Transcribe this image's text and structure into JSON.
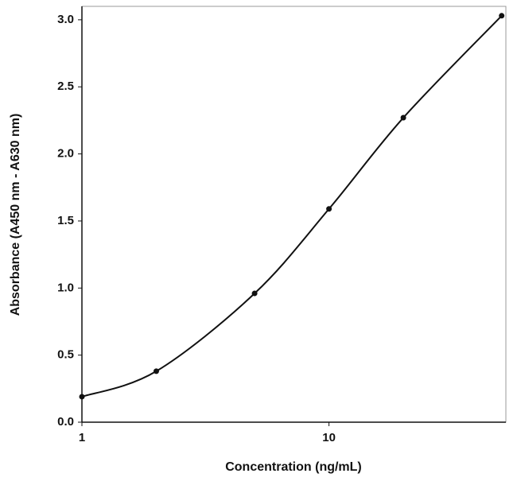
{
  "chart_data": {
    "type": "line",
    "x_label": "Concentration (ng/mL)",
    "y_label": "Absorbance (A450 nm - A630 nm)",
    "x": [
      1,
      2,
      5,
      10,
      20,
      50
    ],
    "values": [
      0.19,
      0.38,
      0.96,
      1.59,
      2.27,
      3.03
    ],
    "color": "#111111",
    "xscale": "log",
    "xlim": [
      1,
      52
    ],
    "xticks": [
      1,
      10
    ],
    "ylim": [
      0,
      3.1
    ],
    "yticks": [
      {
        "value": 0,
        "label": "0.0"
      },
      0.5,
      {
        "value": 1,
        "label": "1.0"
      },
      1.5,
      {
        "value": 2,
        "label": "2.0"
      },
      2.5,
      {
        "value": 3,
        "label": "3.0"
      }
    ],
    "grid": false
  }
}
